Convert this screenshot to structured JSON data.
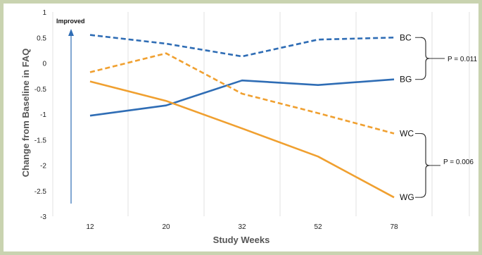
{
  "chart_data": {
    "type": "line",
    "title": "",
    "xlabel": "Study Weeks",
    "ylabel": "Change from Baseline in FAQ",
    "categories": [
      "12",
      "20",
      "32",
      "52",
      "78"
    ],
    "ylim": [
      -3,
      1
    ],
    "yticks": [
      1,
      0.5,
      0,
      -0.5,
      -1,
      -1.5,
      -2,
      -2.5,
      -3
    ],
    "ytick_labels": [
      "1",
      "0.5",
      "0",
      "-0.5",
      "-1",
      "-1.5",
      "-2",
      "-2.5",
      "-3"
    ],
    "grid": "vertical",
    "legend": "none",
    "series": [
      {
        "name": "BC",
        "values": [
          0.55,
          0.38,
          0.13,
          0.46,
          0.5
        ],
        "color": "#2f6db5",
        "dash": true
      },
      {
        "name": "BG",
        "values": [
          -1.03,
          -0.83,
          -0.34,
          -0.43,
          -0.32
        ],
        "color": "#2f6db5",
        "dash": false
      },
      {
        "name": "WC",
        "values": [
          -0.18,
          0.19,
          -0.6,
          -0.98,
          -1.38
        ],
        "color": "#f0a030",
        "dash": true
      },
      {
        "name": "WG",
        "values": [
          -0.36,
          -0.74,
          -1.28,
          -1.83,
          -2.63
        ],
        "color": "#f0a030",
        "dash": false
      }
    ],
    "annotations": {
      "improved": "Improved",
      "p_bc_bg": "P = 0.011",
      "p_wc_wg": "P = 0.006"
    }
  }
}
